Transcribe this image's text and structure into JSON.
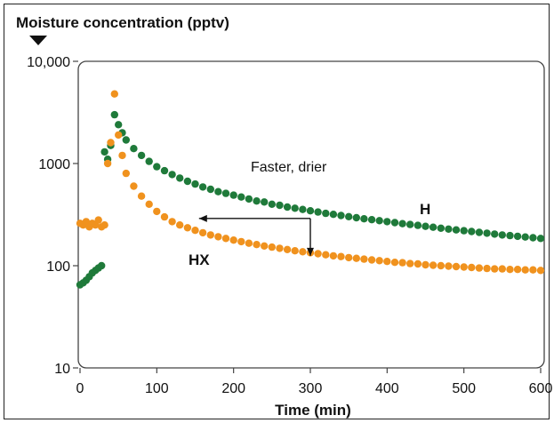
{
  "chart_data": {
    "type": "scatter",
    "title": "Moisture concentration (pptv)",
    "xlabel": "Time (min)",
    "ylabel": "",
    "xlim": [
      0,
      600
    ],
    "ylim": [
      10,
      10000
    ],
    "y_scale": "log",
    "grid": false,
    "x_ticks": [
      0,
      100,
      200,
      300,
      400,
      500,
      600
    ],
    "x_tick_labels": [
      "0",
      "100",
      "200",
      "300",
      "400",
      "500",
      "600"
    ],
    "y_ticks": [
      10,
      100,
      1000,
      10000
    ],
    "y_tick_labels": [
      "10",
      "100",
      "1000",
      "10,000"
    ],
    "colors": {
      "H": "#1f7a3a",
      "HX": "#f0921e"
    },
    "series": [
      {
        "name": "H",
        "points": [
          [
            0,
            65
          ],
          [
            4,
            68
          ],
          [
            8,
            72
          ],
          [
            12,
            78
          ],
          [
            16,
            85
          ],
          [
            20,
            90
          ],
          [
            24,
            95
          ],
          [
            28,
            100
          ],
          [
            32,
            1300
          ],
          [
            36,
            1100
          ],
          [
            40,
            1500
          ],
          [
            45,
            3000
          ],
          [
            50,
            2400
          ],
          [
            55,
            2000
          ],
          [
            60,
            1700
          ],
          [
            70,
            1400
          ],
          [
            80,
            1200
          ],
          [
            90,
            1050
          ],
          [
            100,
            930
          ],
          [
            110,
            850
          ],
          [
            120,
            780
          ],
          [
            130,
            720
          ],
          [
            140,
            670
          ],
          [
            150,
            630
          ],
          [
            160,
            590
          ],
          [
            170,
            560
          ],
          [
            180,
            530
          ],
          [
            190,
            510
          ],
          [
            200,
            490
          ],
          [
            210,
            470
          ],
          [
            220,
            450
          ],
          [
            230,
            430
          ],
          [
            240,
            420
          ],
          [
            250,
            400
          ],
          [
            260,
            390
          ],
          [
            270,
            375
          ],
          [
            280,
            365
          ],
          [
            290,
            355
          ],
          [
            300,
            345
          ],
          [
            310,
            335
          ],
          [
            320,
            325
          ],
          [
            330,
            318
          ],
          [
            340,
            310
          ],
          [
            350,
            302
          ],
          [
            360,
            295
          ],
          [
            370,
            288
          ],
          [
            380,
            282
          ],
          [
            390,
            276
          ],
          [
            400,
            270
          ],
          [
            410,
            264
          ],
          [
            420,
            258
          ],
          [
            430,
            253
          ],
          [
            440,
            248
          ],
          [
            450,
            243
          ],
          [
            460,
            238
          ],
          [
            470,
            233
          ],
          [
            480,
            228
          ],
          [
            490,
            224
          ],
          [
            500,
            220
          ],
          [
            510,
            216
          ],
          [
            520,
            212
          ],
          [
            530,
            208
          ],
          [
            540,
            204
          ],
          [
            550,
            200
          ],
          [
            560,
            197
          ],
          [
            570,
            194
          ],
          [
            580,
            191
          ],
          [
            590,
            188
          ],
          [
            600,
            185
          ]
        ]
      },
      {
        "name": "HX",
        "points": [
          [
            0,
            260
          ],
          [
            4,
            250
          ],
          [
            8,
            270
          ],
          [
            12,
            240
          ],
          [
            16,
            260
          ],
          [
            20,
            250
          ],
          [
            24,
            280
          ],
          [
            28,
            240
          ],
          [
            32,
            250
          ],
          [
            36,
            1000
          ],
          [
            40,
            1600
          ],
          [
            45,
            4800
          ],
          [
            50,
            1900
          ],
          [
            55,
            1200
          ],
          [
            60,
            800
          ],
          [
            70,
            600
          ],
          [
            80,
            480
          ],
          [
            90,
            400
          ],
          [
            100,
            340
          ],
          [
            110,
            300
          ],
          [
            120,
            270
          ],
          [
            130,
            250
          ],
          [
            140,
            235
          ],
          [
            150,
            222
          ],
          [
            160,
            210
          ],
          [
            170,
            200
          ],
          [
            180,
            192
          ],
          [
            190,
            185
          ],
          [
            200,
            178
          ],
          [
            210,
            172
          ],
          [
            220,
            166
          ],
          [
            230,
            161
          ],
          [
            240,
            156
          ],
          [
            250,
            152
          ],
          [
            260,
            148
          ],
          [
            270,
            144
          ],
          [
            280,
            140
          ],
          [
            290,
            137
          ],
          [
            300,
            134
          ],
          [
            310,
            131
          ],
          [
            320,
            128
          ],
          [
            330,
            125
          ],
          [
            340,
            123
          ],
          [
            350,
            120
          ],
          [
            360,
            118
          ],
          [
            370,
            116
          ],
          [
            380,
            114
          ],
          [
            390,
            112
          ],
          [
            400,
            110
          ],
          [
            410,
            108
          ],
          [
            420,
            107
          ],
          [
            430,
            105
          ],
          [
            440,
            104
          ],
          [
            450,
            102
          ],
          [
            460,
            101
          ],
          [
            470,
            100
          ],
          [
            480,
            99
          ],
          [
            490,
            98
          ],
          [
            500,
            97
          ],
          [
            510,
            96
          ],
          [
            520,
            95
          ],
          [
            530,
            94
          ],
          [
            540,
            93
          ],
          [
            550,
            93
          ],
          [
            560,
            92
          ],
          [
            570,
            92
          ],
          [
            580,
            91
          ],
          [
            590,
            91
          ],
          [
            600,
            90
          ]
        ]
      }
    ],
    "annotations": {
      "faster_drier": "Faster, drier",
      "label_H": "H",
      "label_HX": "HX"
    },
    "arrows": [
      {
        "kind": "horizontal",
        "from": [
          300,
          290
        ],
        "to": [
          155,
          290
        ]
      },
      {
        "kind": "vertical",
        "from": [
          300,
          290
        ],
        "to": [
          300,
          125
        ]
      }
    ]
  }
}
